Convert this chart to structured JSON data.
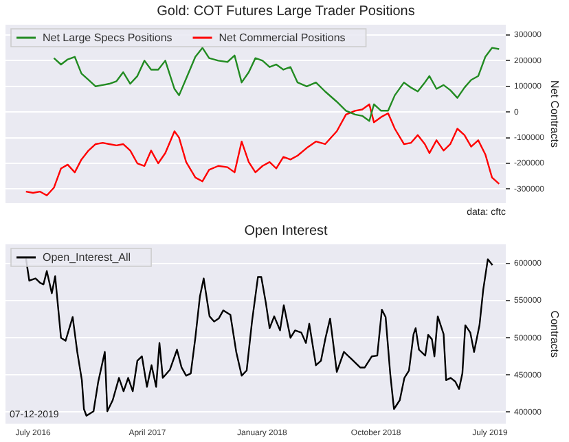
{
  "chart_data": [
    {
      "type": "line",
      "title": "Gold: COT Futures Large Trader Positions",
      "ylabel": "Net Contracts",
      "annotations": [
        "data: cftc"
      ],
      "x": [
        "2016-06-14",
        "2016-07-01",
        "2016-07-18",
        "2016-08-03",
        "2016-08-20",
        "2016-09-06",
        "2016-09-22",
        "2016-10-09",
        "2016-10-25",
        "2016-11-11",
        "2016-11-28",
        "2016-12-15",
        "2016-12-31",
        "2017-01-17",
        "2017-02-02",
        "2017-02-19",
        "2017-03-08",
        "2017-03-25",
        "2017-04-10",
        "2017-04-27",
        "2017-05-14",
        "2017-06-05",
        "2017-06-16",
        "2017-07-03",
        "2017-07-25",
        "2017-08-11",
        "2017-08-27",
        "2017-09-18",
        "2017-10-10",
        "2017-10-27",
        "2017-11-13",
        "2017-11-30",
        "2017-12-16",
        "2018-01-02",
        "2018-01-19",
        "2018-02-04",
        "2018-02-21",
        "2018-03-10",
        "2018-03-27",
        "2018-04-18",
        "2018-05-10",
        "2018-06-01",
        "2018-06-29",
        "2018-07-21",
        "2018-08-12",
        "2018-08-29",
        "2018-09-15",
        "2018-09-26",
        "2018-10-13",
        "2018-10-30",
        "2018-11-15",
        "2018-12-07",
        "2018-12-24",
        "2019-01-09",
        "2019-01-26",
        "2019-02-06",
        "2019-02-23",
        "2019-03-12",
        "2019-03-28",
        "2019-04-14",
        "2019-05-01",
        "2019-05-17",
        "2019-06-03",
        "2019-06-20",
        "2019-07-06",
        "2019-07-23"
      ],
      "series": [
        {
          "name": "Net Large Specs Positions",
          "color": "#228b22",
          "values": [
            null,
            null,
            null,
            null,
            210000,
            185000,
            205000,
            215000,
            150000,
            125000,
            100000,
            105000,
            110000,
            120000,
            155000,
            110000,
            140000,
            200000,
            165000,
            165000,
            200000,
            90000,
            65000,
            130000,
            215000,
            250000,
            210000,
            200000,
            195000,
            220000,
            115000,
            155000,
            210000,
            200000,
            175000,
            185000,
            165000,
            175000,
            115000,
            100000,
            115000,
            80000,
            40000,
            5000,
            -10000,
            -15000,
            -35000,
            30000,
            5000,
            5000,
            65000,
            115000,
            95000,
            80000,
            115000,
            140000,
            90000,
            105000,
            85000,
            55000,
            95000,
            125000,
            140000,
            215000,
            250000,
            245000
          ]
        },
        {
          "name": "Net Commercial Positions",
          "color": "#ff0000",
          "values": [
            -310000,
            -315000,
            -310000,
            -325000,
            -295000,
            -220000,
            -205000,
            -235000,
            -185000,
            -150000,
            -125000,
            -120000,
            -125000,
            -130000,
            -125000,
            -150000,
            -200000,
            -210000,
            -150000,
            -200000,
            -160000,
            -75000,
            -100000,
            -195000,
            -255000,
            -270000,
            -225000,
            -210000,
            -215000,
            -235000,
            -115000,
            -195000,
            -235000,
            -210000,
            -195000,
            -220000,
            -175000,
            -185000,
            -170000,
            -140000,
            -115000,
            -125000,
            -75000,
            -10000,
            5000,
            10000,
            30000,
            -40000,
            -20000,
            -5000,
            -65000,
            -125000,
            -120000,
            -90000,
            -125000,
            -160000,
            -110000,
            -150000,
            -125000,
            -65000,
            -90000,
            -135000,
            -110000,
            -165000,
            -255000,
            -280000
          ]
        }
      ],
      "xlim": [
        "2016-04-26",
        "2019-08-08"
      ],
      "ylim": [
        -355000,
        340000
      ],
      "yticks": [
        -300000,
        -200000,
        -100000,
        0,
        100000,
        200000,
        300000
      ],
      "grid": "y",
      "legend": "top left",
      "tick_labels": "y"
    },
    {
      "type": "line",
      "title": "Open Interest",
      "ylabel": "Contracts",
      "annotations": [
        "07-12-2019"
      ],
      "x": [
        "2016-06-14",
        "2016-06-22",
        "2016-07-07",
        "2016-07-18",
        "2016-07-26",
        "2016-08-03",
        "2016-08-15",
        "2016-08-23",
        "2016-09-06",
        "2016-09-17",
        "2016-10-04",
        "2016-10-15",
        "2016-10-26",
        "2016-10-31",
        "2016-11-06",
        "2016-11-23",
        "2016-12-04",
        "2016-12-20",
        "2016-12-26",
        "2017-01-08",
        "2017-01-23",
        "2017-02-03",
        "2017-02-14",
        "2017-02-25",
        "2017-03-08",
        "2017-03-19",
        "2017-03-31",
        "2017-04-11",
        "2017-04-22",
        "2017-04-30",
        "2017-05-08",
        "2017-05-25",
        "2017-06-11",
        "2017-06-22",
        "2017-07-03",
        "2017-07-14",
        "2017-07-25",
        "2017-08-05",
        "2017-08-14",
        "2017-08-28",
        "2017-09-08",
        "2017-09-19",
        "2017-09-30",
        "2017-10-17",
        "2017-10-31",
        "2017-11-13",
        "2017-11-25",
        "2017-12-08",
        "2017-12-22",
        "2017-12-30",
        "2018-01-10",
        "2018-01-19",
        "2018-01-30",
        "2018-02-13",
        "2018-02-22",
        "2018-03-10",
        "2018-03-21",
        "2018-04-05",
        "2018-04-16",
        "2018-04-24",
        "2018-05-10",
        "2018-05-22",
        "2018-06-02",
        "2018-06-13",
        "2018-06-29",
        "2018-07-16",
        "2018-08-02",
        "2018-08-24",
        "2018-09-04",
        "2018-09-21",
        "2018-10-04",
        "2018-10-15",
        "2018-10-24",
        "2018-11-04",
        "2018-11-13",
        "2018-11-27",
        "2018-12-08",
        "2018-12-19",
        "2018-12-30",
        "2019-01-04",
        "2019-01-12",
        "2019-01-27",
        "2019-02-03",
        "2019-02-12",
        "2019-02-18",
        "2019-02-26",
        "2019-03-12",
        "2019-03-18",
        "2019-03-29",
        "2019-04-09",
        "2019-04-18",
        "2019-04-26",
        "2019-05-03",
        "2019-05-15",
        "2019-05-24",
        "2019-06-06",
        "2019-06-15",
        "2019-06-26",
        "2019-07-07"
      ],
      "series": [
        {
          "name": "Open_Interest_All",
          "color": "#000000",
          "values": [
            607000,
            577000,
            580000,
            574000,
            572000,
            590000,
            560000,
            583000,
            500000,
            496000,
            528000,
            481000,
            443000,
            404000,
            395000,
            401000,
            440000,
            481000,
            401000,
            416000,
            446000,
            428000,
            446000,
            428000,
            469000,
            475000,
            434000,
            463000,
            434000,
            493000,
            446000,
            457000,
            484000,
            460000,
            449000,
            452000,
            500000,
            556000,
            580000,
            529000,
            522000,
            526000,
            537000,
            531000,
            481000,
            449000,
            456000,
            523000,
            582000,
            582000,
            547000,
            513000,
            529000,
            510000,
            544000,
            500000,
            510000,
            507000,
            493000,
            519000,
            463000,
            469000,
            500000,
            526000,
            454000,
            481000,
            472000,
            460000,
            460000,
            475000,
            476000,
            538000,
            528000,
            452000,
            404000,
            416000,
            446000,
            456000,
            505000,
            513000,
            484000,
            476000,
            504000,
            498000,
            475000,
            529000,
            505000,
            443000,
            446000,
            441000,
            431000,
            452000,
            517000,
            507000,
            481000,
            517000,
            565000,
            606000,
            598000
          ]
        }
      ],
      "xlim": [
        "2016-04-26",
        "2019-08-08"
      ],
      "xticks": [
        {
          "value": "2016-07-01",
          "label": "July 2016"
        },
        {
          "value": "2017-04-01",
          "label": "April 2017"
        },
        {
          "value": "2018-01-01",
          "label": "January 2018"
        },
        {
          "value": "2018-10-01",
          "label": "October 2018"
        },
        {
          "value": "2019-07-01",
          "label": "July 2019"
        }
      ],
      "ylim": [
        384000,
        626000
      ],
      "yticks": [
        400000,
        450000,
        500000,
        550000,
        600000
      ],
      "grid": "y",
      "legend": "top left"
    }
  ]
}
